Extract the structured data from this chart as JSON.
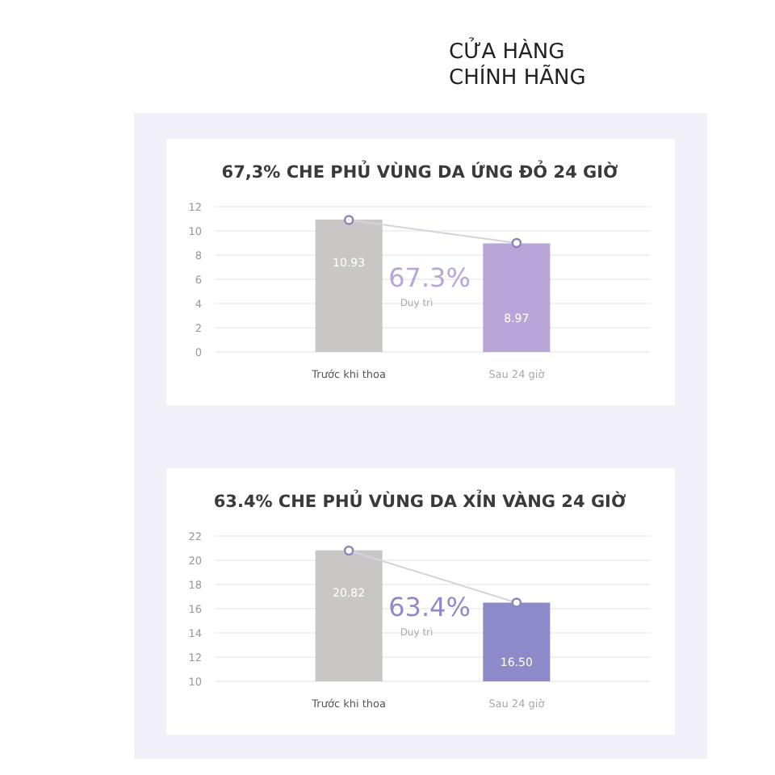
{
  "chart_data": [
    {
      "type": "bar",
      "title": "67,3% CHE PHỦ VÙNG DA ỨNG ĐỎ 24 GIỜ",
      "categories": [
        "Trước khi thoa",
        "Sau 24 giờ"
      ],
      "series": [
        {
          "colors": [
            "#c9c7c5",
            "#b9a6d8"
          ],
          "values": [
            10.93,
            8.97
          ],
          "value_labels": [
            "10.93",
            "8.97"
          ]
        },
        {
          "type": "line",
          "color": "#d6d3dc",
          "values": [
            10.9,
            9.0
          ],
          "marker": "circle"
        }
      ],
      "ylim": [
        0,
        12
      ],
      "yticks": [
        0,
        2,
        4,
        6,
        8,
        10,
        12
      ],
      "grid": "y",
      "annotations": [
        "CỬA HÀNG CHÍNH HÃNG",
        "67.3%",
        "Duy trì"
      ]
    },
    {
      "type": "bar",
      "title": "63.4% CHE PHỦ VÙNG DA XỈN VÀNG 24 GIỜ",
      "categories": [
        "Trước khi thoa",
        "Sau 24 giờ"
      ],
      "series": [
        {
          "colors": [
            "#c9c7c5",
            "#8e8ac9"
          ],
          "values": [
            20.82,
            16.5
          ],
          "value_labels": [
            "20.82",
            "16.50"
          ]
        },
        {
          "type": "line",
          "color": "#d6d3dc",
          "values": [
            20.8,
            16.5
          ],
          "marker": "circle"
        }
      ],
      "ylim": [
        10,
        22
      ],
      "yticks": [
        10,
        12,
        14,
        16,
        18,
        20,
        22
      ],
      "grid": "y",
      "annotations": [
        "63.4%",
        "Duy trì"
      ]
    }
  ]
}
